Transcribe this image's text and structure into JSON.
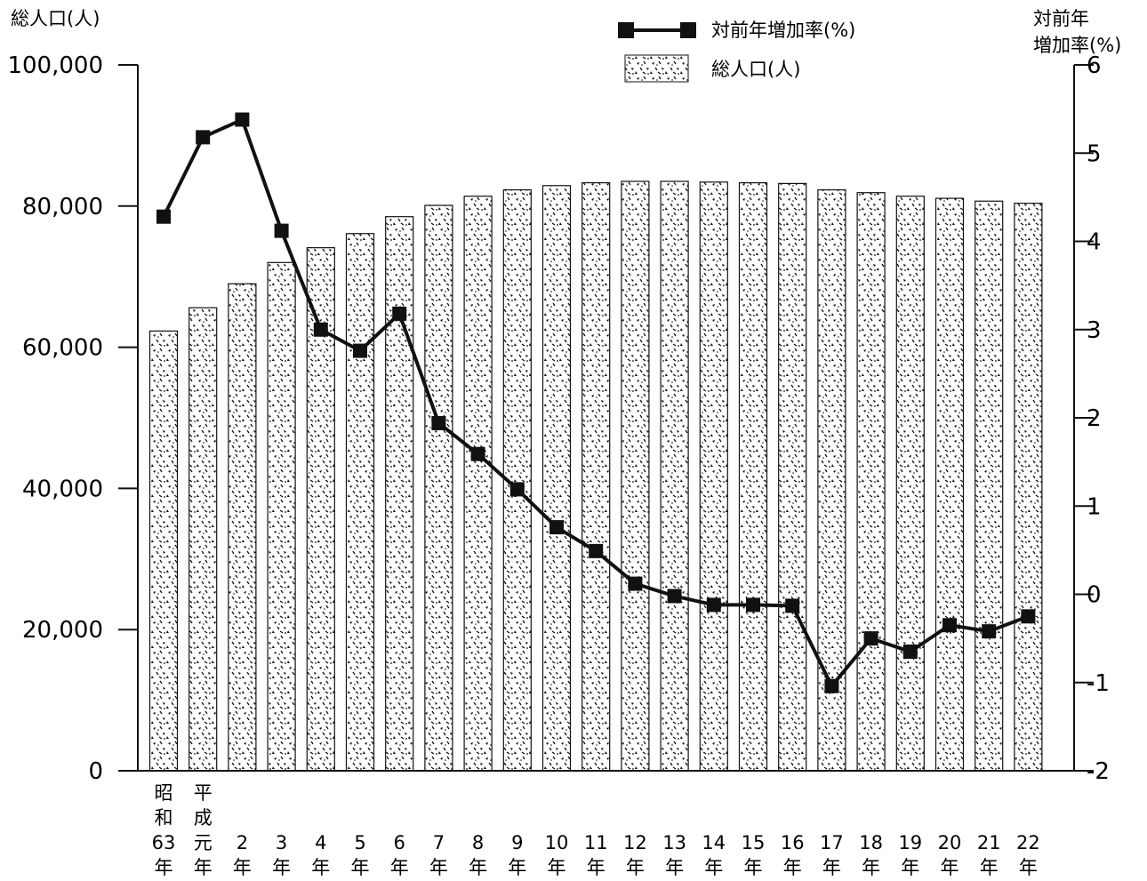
{
  "chart_data": {
    "type": "bar+line",
    "title": "",
    "y_left": {
      "label": "総人口(人)",
      "lim": [
        0,
        100000
      ],
      "ticks": [
        "0",
        "20,000",
        "40,000",
        "60,000",
        "80,000",
        "100,000"
      ]
    },
    "y_right": {
      "label_line1": "対前年",
      "label_line2": "増加率(%)",
      "lim": [
        -2,
        6
      ],
      "ticks": [
        "-2",
        "-1",
        "0",
        "1",
        "2",
        "3",
        "4",
        "5",
        "6"
      ]
    },
    "categories": [
      [
        "昭",
        "和",
        "63",
        "年"
      ],
      [
        "平",
        "成",
        "元",
        "年"
      ],
      [
        "2",
        "年"
      ],
      [
        "3",
        "年"
      ],
      [
        "4",
        "年"
      ],
      [
        "5",
        "年"
      ],
      [
        "6",
        "年"
      ],
      [
        "7",
        "年"
      ],
      [
        "8",
        "年"
      ],
      [
        "9",
        "年"
      ],
      [
        "10",
        "年"
      ],
      [
        "11",
        "年"
      ],
      [
        "12",
        "年"
      ],
      [
        "13",
        "年"
      ],
      [
        "14",
        "年"
      ],
      [
        "15",
        "年"
      ],
      [
        "16",
        "年"
      ],
      [
        "17",
        "年"
      ],
      [
        "18",
        "年"
      ],
      [
        "19",
        "年"
      ],
      [
        "20",
        "年"
      ],
      [
        "21",
        "年"
      ],
      [
        "22",
        "年"
      ]
    ],
    "series": [
      {
        "name": "総人口(人)",
        "type": "bar",
        "axis": "left",
        "values": [
          62300,
          65600,
          69000,
          72000,
          74100,
          76100,
          78500,
          80100,
          81400,
          82300,
          82900,
          83300,
          83500,
          83500,
          83400,
          83300,
          83200,
          82300,
          81900,
          81400,
          81100,
          80700,
          80400
        ]
      },
      {
        "name": "対前年増加率(%)",
        "type": "line",
        "axis": "right",
        "values": [
          4.28,
          5.18,
          5.38,
          4.12,
          3.0,
          2.76,
          3.18,
          1.94,
          1.59,
          1.19,
          0.76,
          0.49,
          0.12,
          -0.02,
          -0.12,
          -0.12,
          -0.13,
          -1.04,
          -0.5,
          -0.65,
          -0.35,
          -0.42,
          -0.25
        ]
      }
    ],
    "legend_position": "top-right",
    "grid": false
  },
  "colors": {
    "ink": "#111111",
    "background": "#ffffff"
  }
}
